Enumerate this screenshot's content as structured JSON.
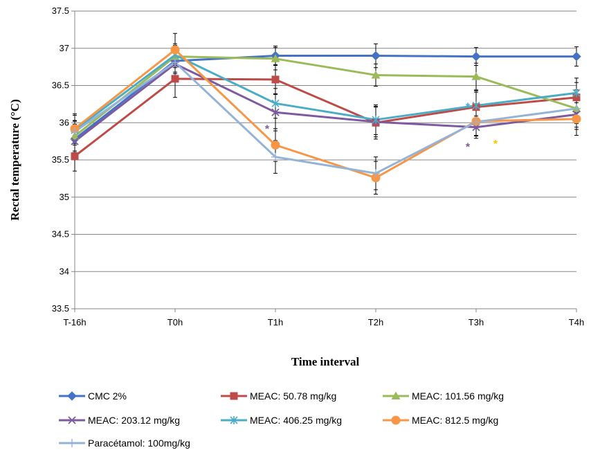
{
  "chart_data": {
    "type": "line",
    "xlabel": "Time interval",
    "ylabel": "Rectal temperature (°C)",
    "ylim": [
      33.5,
      37.5
    ],
    "ytick_step": 0.5,
    "grid": true,
    "legend_position": "bottom",
    "categories": [
      "T-16h",
      "T0h",
      "T1h",
      "T2h",
      "T3h",
      "T4h"
    ],
    "series": [
      {
        "name": "CMC 2%",
        "values": [
          35.78,
          36.83,
          36.9,
          36.9,
          36.89,
          36.89
        ],
        "color": "#4472C4",
        "marker": "diamond",
        "errors": [
          0.2,
          0.15,
          0.13,
          0.16,
          0.12,
          0.13
        ]
      },
      {
        "name": "MEAC: 50.78 mg/kg",
        "values": [
          35.55,
          36.59,
          36.58,
          36.0,
          36.21,
          36.34
        ],
        "color": "#BE4B48",
        "marker": "square",
        "errors": [
          0.2,
          0.25,
          0.2,
          0.22,
          0.2,
          0.2
        ]
      },
      {
        "name": "MEAC: 101.56 mg/kg",
        "values": [
          35.82,
          36.89,
          36.86,
          36.64,
          36.62,
          36.19
        ],
        "color": "#9BBB59",
        "marker": "triangle",
        "errors": [
          0.2,
          0.15,
          0.15,
          0.15,
          0.18,
          0.25
        ]
      },
      {
        "name": "MEAC: 203.12 mg/kg",
        "values": [
          35.75,
          36.79,
          36.14,
          36.01,
          35.94,
          36.11
        ],
        "color": "#7E5AA0",
        "marker": "x",
        "errors": [
          0.15,
          0.2,
          0.25,
          0.2,
          0.15,
          0.2
        ]
      },
      {
        "name": "MEAC: 406.25 mg/kg",
        "values": [
          35.9,
          36.91,
          36.26,
          36.04,
          36.23,
          36.4
        ],
        "color": "#4BACC6",
        "marker": "star",
        "errors": [
          0.2,
          0.15,
          0.2,
          0.2,
          0.2,
          0.2
        ]
      },
      {
        "name": "MEAC: 812.5 mg/kg",
        "values": [
          35.92,
          36.98,
          35.7,
          35.26,
          36.02,
          36.05
        ],
        "color": "#F79646",
        "marker": "circle",
        "errors": [
          0.2,
          0.22,
          0.22,
          0.22,
          0.2,
          0.22
        ]
      },
      {
        "name": "Paracétamol: 100mg/kg",
        "values": [
          35.88,
          36.81,
          35.54,
          35.32,
          36.01,
          36.19
        ],
        "color": "#95B3D7",
        "marker": "plus",
        "errors": [
          0.15,
          0.15,
          0.22,
          0.22,
          0.18,
          0.2
        ]
      }
    ],
    "annotations": [
      {
        "text": "*",
        "category": "T1h",
        "y": 35.94,
        "color": "#7E5AA0"
      },
      {
        "text": "*",
        "category": "T3h",
        "y": 36.24,
        "color": "#4BACC6"
      },
      {
        "text": "*",
        "category": "T3h",
        "y": 35.7,
        "color": "#7E5AA0"
      },
      {
        "text": "*",
        "category": "T3h",
        "y": 35.74,
        "color": "#FFC000",
        "offset": 1
      }
    ]
  }
}
